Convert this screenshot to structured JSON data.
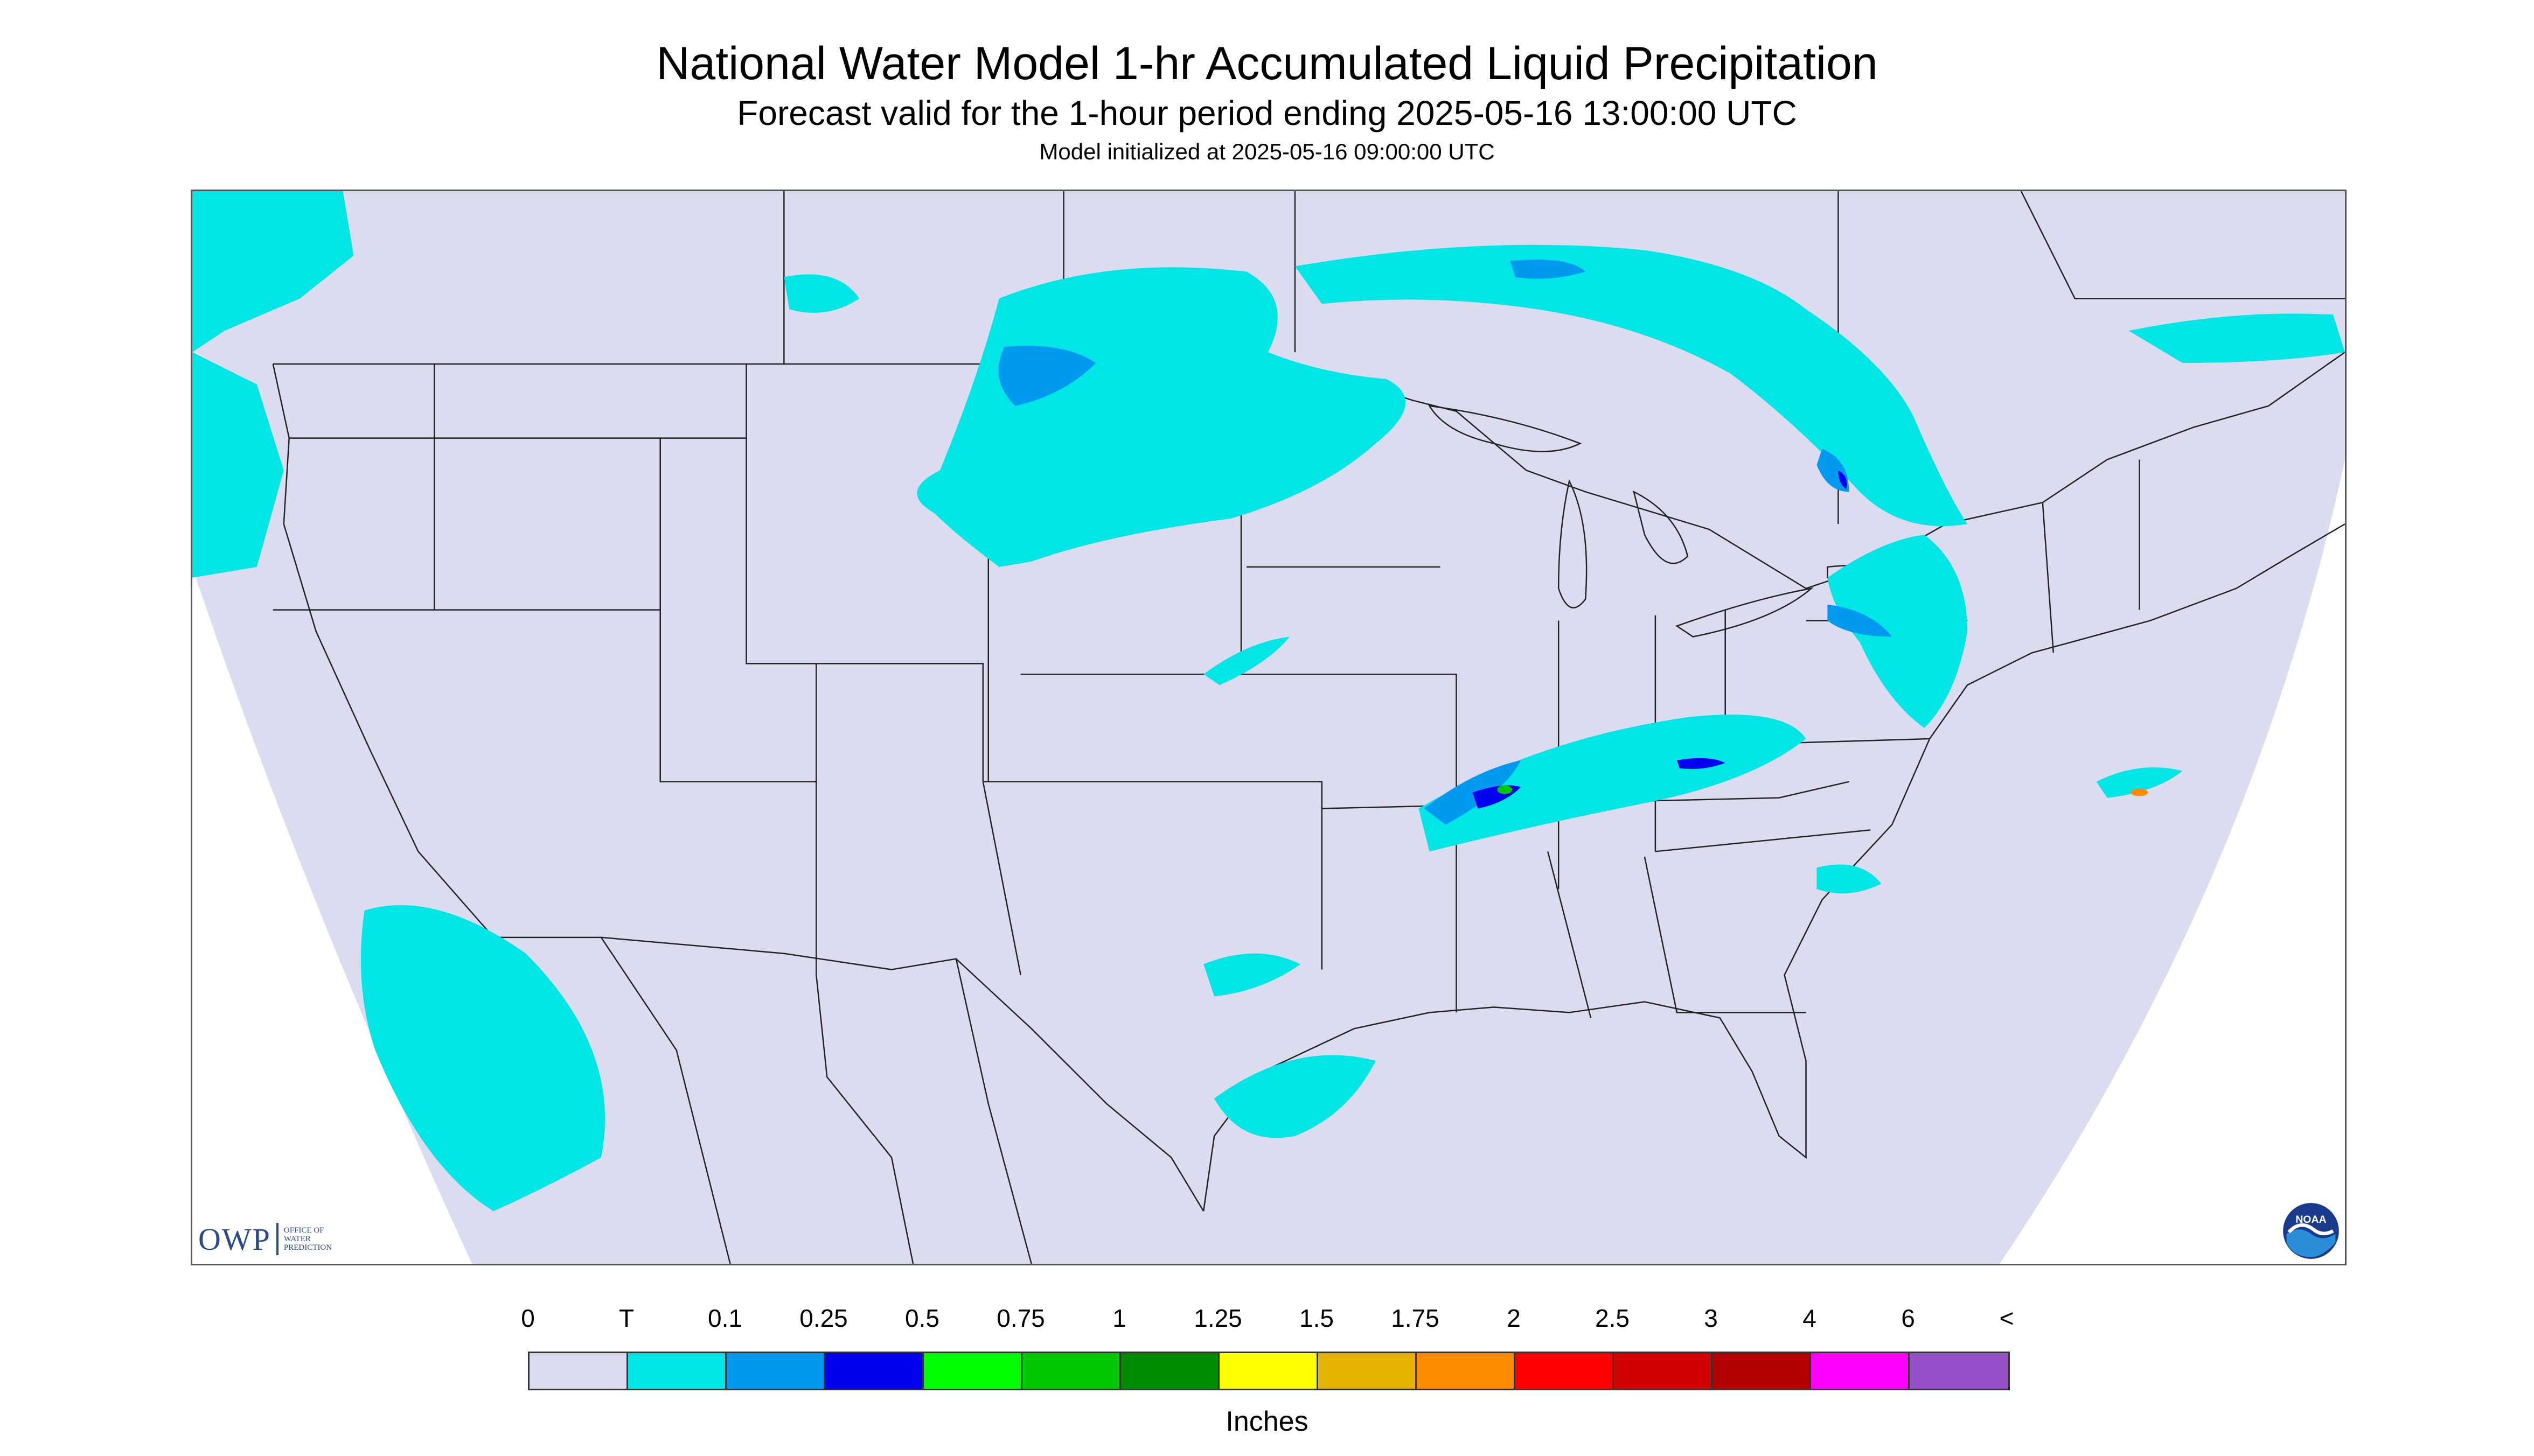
{
  "header": {
    "title": "National Water Model 1-hr Accumulated Liquid Precipitation",
    "subtitle": "Forecast valid for the 1-hour period ending 2025-05-16 13:00:00 UTC",
    "init": "Model initialized at 2025-05-16 09:00:00 UTC"
  },
  "logos": {
    "owp_text": "OWP",
    "owp_small": "OFFICE OF\nWATER\nPREDICTION",
    "noaa_text": "NOAA"
  },
  "legend": {
    "units": "Inches",
    "labels": [
      "0",
      "T",
      "0.1",
      "0.25",
      "0.5",
      "0.75",
      "1",
      "1.25",
      "1.5",
      "1.75",
      "2",
      "2.5",
      "3",
      "4",
      "6",
      "<"
    ],
    "colors": [
      "#dcdcf0",
      "#00e5e5",
      "#0099f0",
      "#0000f0",
      "#00ff00",
      "#00c800",
      "#008c00",
      "#ffff00",
      "#e6b400",
      "#ff8c00",
      "#ff0000",
      "#d20000",
      "#b40000",
      "#ff00ff",
      "#9650c8"
    ]
  },
  "map": {
    "background_color": "#dcdcf0",
    "outside_color": "#ffffff",
    "trace_color": "#00e5e5",
    "light_color": "#0099f0",
    "moderate_color": "#0000f0"
  }
}
